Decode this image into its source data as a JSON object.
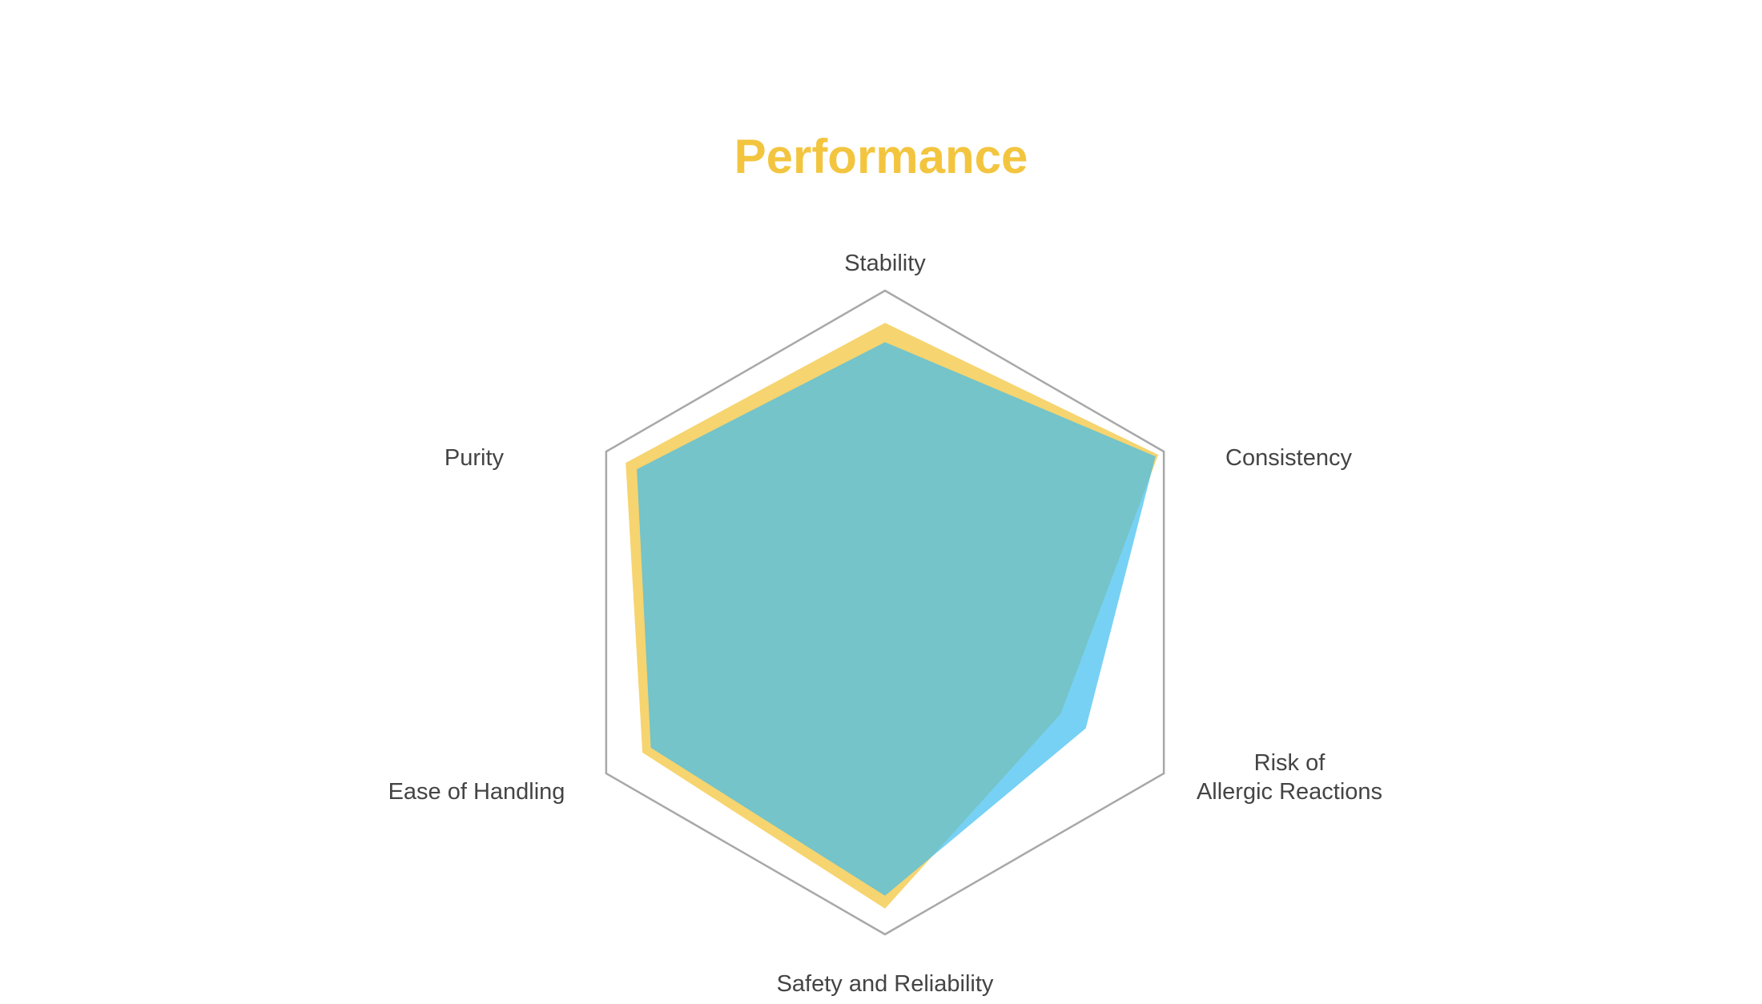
{
  "chart_data": {
    "type": "radar",
    "title": "Performance",
    "axes": [
      {
        "lines": [
          "Stability"
        ]
      },
      {
        "lines": [
          "Consistency"
        ]
      },
      {
        "lines": [
          "Risk of",
          "Allergic Reactions"
        ]
      },
      {
        "lines": [
          "Safety and Reliability"
        ]
      },
      {
        "lines": [
          "Ease of Handling"
        ]
      },
      {
        "lines": [
          "Purity"
        ]
      }
    ],
    "rmax": 100,
    "gridlines": "outer-only",
    "legend": "none",
    "series": [
      {
        "values": [
          90,
          98,
          63,
          92,
          87,
          93
        ],
        "color": "#F3C53F",
        "opacity": 0.75
      },
      {
        "values": [
          84,
          97,
          72,
          88,
          84,
          89
        ],
        "color": "#3DBDEF",
        "opacity": 0.7
      }
    ],
    "colors": {
      "title": "#F3C53F",
      "grid": "#A8A8A8",
      "label": "#444444"
    }
  }
}
